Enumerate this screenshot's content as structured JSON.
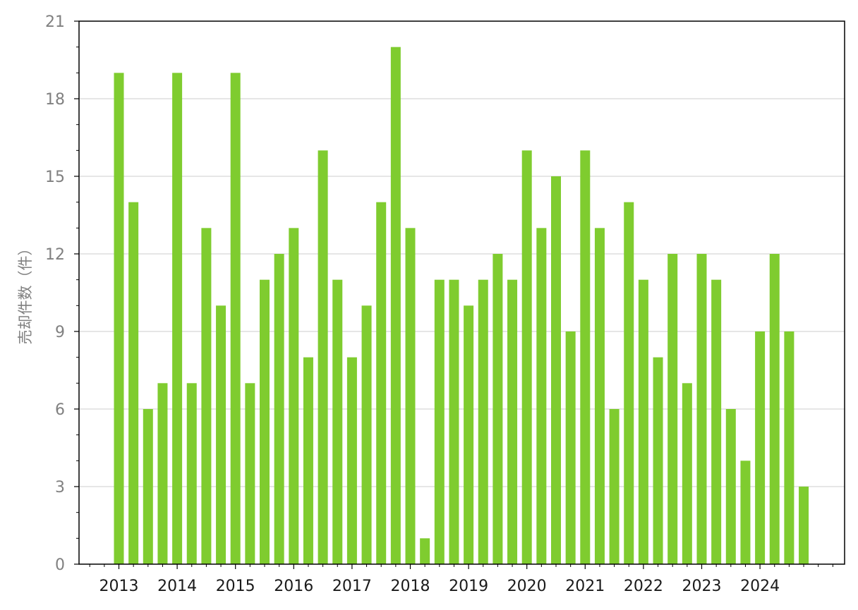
{
  "chart_data": {
    "type": "bar",
    "ylabel": "売却件数（件）",
    "xlabel": "",
    "ylim": [
      0,
      21
    ],
    "yticks": [
      0,
      3,
      6,
      9,
      12,
      15,
      18,
      21
    ],
    "grid": "horizontal",
    "bar_color": "#7fcc2f",
    "x_tick_labels": [
      "2013",
      "2014",
      "2015",
      "2016",
      "2017",
      "2018",
      "2019",
      "2020",
      "2021",
      "2022",
      "2023",
      "2024"
    ],
    "series": [
      {
        "values": [
          19,
          14,
          6,
          7,
          19,
          7,
          13,
          10,
          19,
          7,
          11,
          12,
          13,
          8,
          16,
          11,
          8,
          10,
          14,
          20,
          13,
          1,
          11,
          11,
          10,
          11,
          12,
          11,
          16,
          13,
          15,
          9,
          16,
          13,
          6,
          14,
          11,
          8,
          12,
          7,
          12,
          11,
          6,
          4,
          9,
          12,
          9,
          3
        ]
      }
    ]
  },
  "colors": {
    "bar": "#7fcc2f",
    "grid": "#d6d6d6",
    "ytick_text": "#808080",
    "xtick_text": "#1a1a1a",
    "axis": "#000000"
  }
}
